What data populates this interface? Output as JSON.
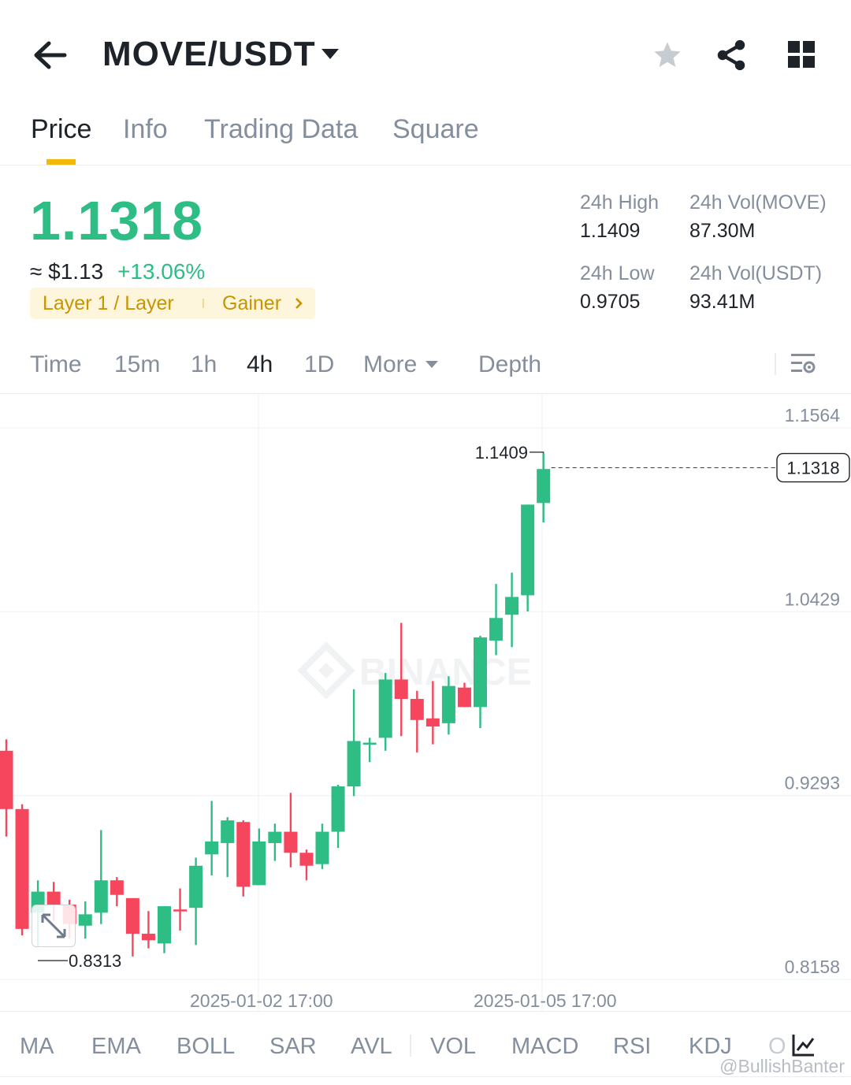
{
  "header": {
    "pair": "MOVE/USDT",
    "icons": [
      "back-arrow-icon",
      "chevron-down-icon",
      "star-icon",
      "share-icon",
      "grid-icon"
    ]
  },
  "tabs": [
    {
      "label": "Price",
      "active": true
    },
    {
      "label": "Info",
      "active": false
    },
    {
      "label": "Trading Data",
      "active": false
    },
    {
      "label": "Square",
      "active": false
    }
  ],
  "ticker": {
    "last_price": "1.1318",
    "fiat_price": "≈ $1.13",
    "change": "+13.06%",
    "tag_category": "Layer 1 / Layer",
    "tag_gainer": "Gainer",
    "stats": {
      "high_label": "24h High",
      "high_value": "1.1409",
      "low_label": "24h Low",
      "low_value": "0.9705",
      "vol_base_label": "24h Vol(MOVE)",
      "vol_base_value": "87.30M",
      "vol_quote_label": "24h Vol(USDT)",
      "vol_quote_value": "93.41M"
    }
  },
  "timeframes": {
    "items": [
      "Time",
      "15m",
      "1h",
      "4h",
      "1D"
    ],
    "active": "4h",
    "more_label": "More",
    "depth_label": "Depth"
  },
  "chart": {
    "watermark": "BINANCE",
    "high_marker": "1.1409",
    "low_marker": "0.8313",
    "current_price_tag": "1.1318",
    "y_ticks": [
      "1.1564",
      "1.0429",
      "0.9293",
      "0.8158"
    ],
    "x_ticks": [
      "2025-01-02 17:00",
      "2025-01-05 17:00"
    ]
  },
  "chart_data": {
    "type": "candlestick",
    "interval": "4h",
    "ylim": [
      0.8158,
      1.1564
    ],
    "y_ticks": [
      1.1564,
      1.0429,
      0.9293,
      0.8158
    ],
    "x_ticks": [
      "2025-01-02 17:00",
      "2025-01-05 17:00"
    ],
    "high": 1.1409,
    "low": 0.8313,
    "last": 1.1318,
    "colors": {
      "up": "#2ebd85",
      "down": "#f6465d"
    },
    "candles": [
      {
        "o": 0.957,
        "c": 0.921,
        "h": 0.964,
        "l": 0.904
      },
      {
        "o": 0.921,
        "c": 0.847,
        "h": 0.924,
        "l": 0.843
      },
      {
        "o": 0.857,
        "c": 0.87,
        "h": 0.877,
        "l": 0.836
      },
      {
        "o": 0.87,
        "c": 0.862,
        "h": 0.876,
        "l": 0.852
      },
      {
        "o": 0.862,
        "c": 0.85,
        "h": 0.865,
        "l": 0.841
      },
      {
        "o": 0.849,
        "c": 0.856,
        "h": 0.864,
        "l": 0.841
      },
      {
        "o": 0.857,
        "c": 0.877,
        "h": 0.908,
        "l": 0.85
      },
      {
        "o": 0.877,
        "c": 0.868,
        "h": 0.879,
        "l": 0.861
      },
      {
        "o": 0.866,
        "c": 0.844,
        "h": 0.866,
        "l": 0.83
      },
      {
        "o": 0.844,
        "c": 0.84,
        "h": 0.858,
        "l": 0.835
      },
      {
        "o": 0.838,
        "c": 0.861,
        "h": 0.861,
        "l": 0.832
      },
      {
        "o": 0.859,
        "c": 0.858,
        "h": 0.872,
        "l": 0.846
      },
      {
        "o": 0.86,
        "c": 0.886,
        "h": 0.891,
        "l": 0.837
      },
      {
        "o": 0.893,
        "c": 0.901,
        "h": 0.926,
        "l": 0.88
      },
      {
        "o": 0.9,
        "c": 0.914,
        "h": 0.916,
        "l": 0.879
      },
      {
        "o": 0.913,
        "c": 0.873,
        "h": 0.914,
        "l": 0.867
      },
      {
        "o": 0.874,
        "c": 0.901,
        "h": 0.909,
        "l": 0.874
      },
      {
        "o": 0.9,
        "c": 0.907,
        "h": 0.912,
        "l": 0.889
      },
      {
        "o": 0.907,
        "c": 0.894,
        "h": 0.931,
        "l": 0.885
      },
      {
        "o": 0.894,
        "c": 0.886,
        "h": 0.896,
        "l": 0.877
      },
      {
        "o": 0.887,
        "c": 0.907,
        "h": 0.912,
        "l": 0.884
      },
      {
        "o": 0.907,
        "c": 0.935,
        "h": 0.936,
        "l": 0.897
      },
      {
        "o": 0.935,
        "c": 0.963,
        "h": 0.995,
        "l": 0.929
      },
      {
        "o": 0.962,
        "c": 0.962,
        "h": 0.965,
        "l": 0.95
      },
      {
        "o": 0.965,
        "c": 1.001,
        "h": 1.005,
        "l": 0.957
      },
      {
        "o": 1.001,
        "c": 0.989,
        "h": 1.036,
        "l": 0.966
      },
      {
        "o": 0.989,
        "c": 0.976,
        "h": 0.994,
        "l": 0.956
      },
      {
        "o": 0.977,
        "c": 0.972,
        "h": 1.0,
        "l": 0.961
      },
      {
        "o": 0.974,
        "c": 0.997,
        "h": 1.003,
        "l": 0.967
      },
      {
        "o": 0.996,
        "c": 0.984,
        "h": 0.999,
        "l": 0.984
      },
      {
        "o": 0.984,
        "c": 1.027,
        "h": 1.028,
        "l": 0.971
      },
      {
        "o": 1.025,
        "c": 1.039,
        "h": 1.06,
        "l": 1.016
      },
      {
        "o": 1.041,
        "c": 1.052,
        "h": 1.067,
        "l": 1.021
      },
      {
        "o": 1.053,
        "c": 1.109,
        "h": 1.109,
        "l": 1.043
      },
      {
        "o": 1.11,
        "c": 1.131,
        "h": 1.1409,
        "l": 1.098
      }
    ]
  },
  "indicators": [
    "MA",
    "EMA",
    "BOLL",
    "SAR",
    "AVL",
    "VOL",
    "MACD",
    "RSI",
    "KDJ",
    "O"
  ],
  "footer_watermark": "@BullishBanter"
}
